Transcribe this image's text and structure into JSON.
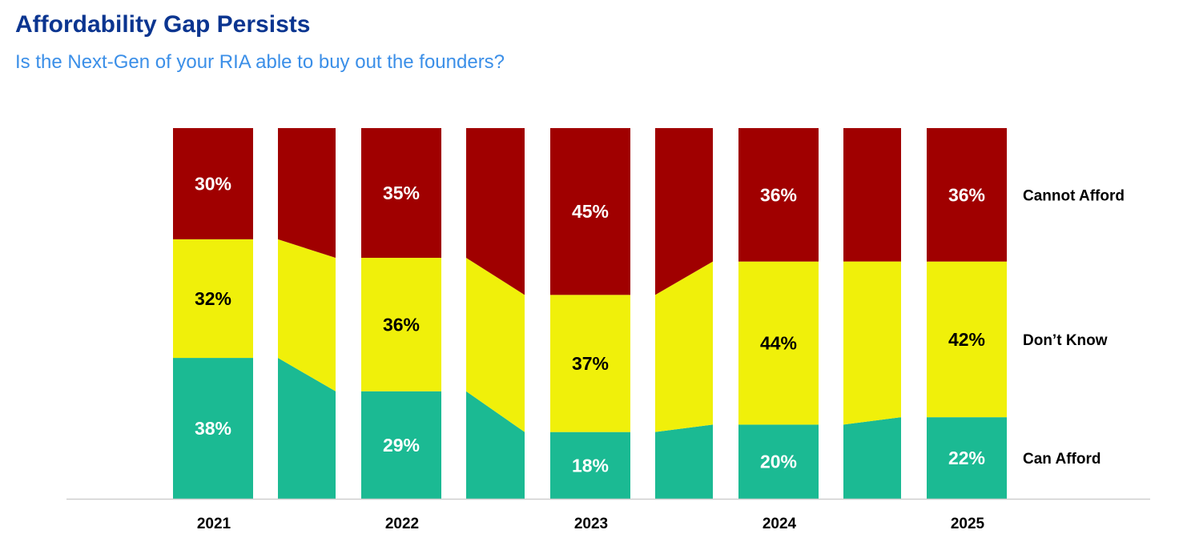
{
  "title": "Affordability Gap Persists",
  "subtitle": "Is the Next-Gen of your RIA able to buy out the founders?",
  "chart_data": {
    "type": "bar",
    "stacked": true,
    "percent_stacked": true,
    "title": "Affordability Gap Persists",
    "subtitle": "Is the Next-Gen of your RIA able to buy out the founders?",
    "categories": [
      "2021",
      "2022",
      "2023",
      "2024",
      "2025"
    ],
    "series": [
      {
        "name": "Can Afford",
        "values": [
          38,
          29,
          18,
          20,
          22
        ],
        "color": "#1bba93",
        "label_color": "#ffffff"
      },
      {
        "name": "Don’t Know",
        "values": [
          32,
          36,
          37,
          44,
          42
        ],
        "color": "#f0f00a",
        "label_color": "#000000"
      },
      {
        "name": "Cannot Afford",
        "values": [
          30,
          35,
          45,
          36,
          36
        ],
        "color": "#a00000",
        "label_color": "#ffffff"
      }
    ],
    "value_format": "{v}%",
    "ylim": [
      0,
      100
    ],
    "grid": false,
    "connectors_between_bars": true,
    "legend_placement": "right"
  }
}
